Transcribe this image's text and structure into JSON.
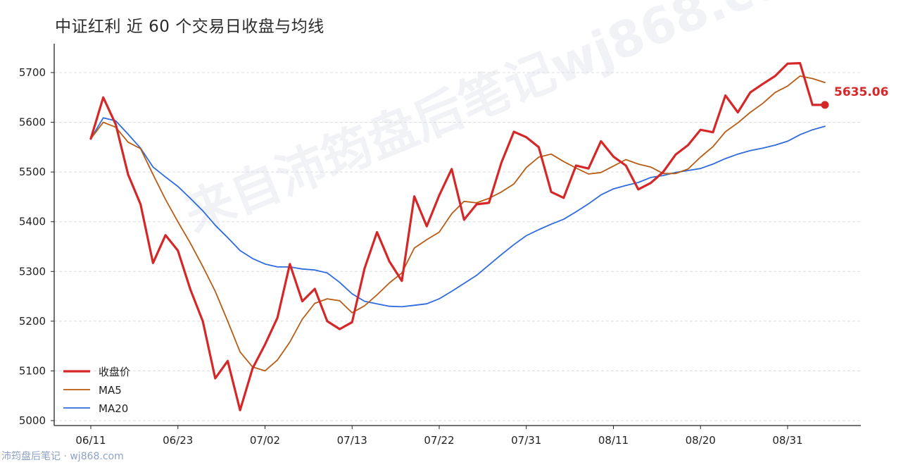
{
  "title": "中证红利 近 60 个交易日收盘与均线",
  "watermark": "来自沛筠盘后笔记wj868.com",
  "footer": "沛筠盘后笔记 · wj868.com",
  "colors": {
    "close": "#d62728",
    "ma5": "#b85c13",
    "ma20": "#2f6be0",
    "grid": "#dcdcdc",
    "axis": "#222222"
  },
  "chart_data": {
    "type": "line",
    "ylim": [
      4990,
      5760
    ],
    "y_ticks": [
      5000,
      5100,
      5200,
      5300,
      5400,
      5500,
      5600,
      5700
    ],
    "x_tick_labels": [
      {
        "index": 0,
        "label": "06/11"
      },
      {
        "index": 7,
        "label": "06/23"
      },
      {
        "index": 14,
        "label": "07/02"
      },
      {
        "index": 21,
        "label": "07/13"
      },
      {
        "index": 28,
        "label": "07/22"
      },
      {
        "index": 35,
        "label": "07/31"
      },
      {
        "index": 42,
        "label": "08/11"
      },
      {
        "index": 49,
        "label": "08/20"
      },
      {
        "index": 56,
        "label": "08/31"
      }
    ],
    "series": [
      {
        "name": "收盘价",
        "values": [
          5567,
          5650,
          5596,
          5495,
          5435,
          5317,
          5373,
          5342,
          5264,
          5200,
          5085,
          5120,
          5021,
          5105,
          5153,
          5207,
          5315,
          5240,
          5265,
          5200,
          5184,
          5198,
          5306,
          5379,
          5320,
          5281,
          5451,
          5391,
          5453,
          5506,
          5404,
          5435,
          5438,
          5519,
          5581,
          5570,
          5550,
          5460,
          5448,
          5513,
          5507,
          5562,
          5531,
          5513,
          5465,
          5478,
          5500,
          5535,
          5554,
          5585,
          5580,
          5654,
          5620,
          5660,
          5677,
          5693,
          5718,
          5719,
          5635,
          5635
        ]
      },
      {
        "name": "MA5",
        "values": [
          5567,
          5600,
          5590,
          5560,
          5547,
          5495,
          5445,
          5400,
          5357,
          5310,
          5260,
          5200,
          5138,
          5108,
          5100,
          5122,
          5158,
          5204,
          5236,
          5245,
          5241,
          5217,
          5231,
          5253,
          5277,
          5297,
          5347,
          5364,
          5379,
          5416,
          5441,
          5438,
          5447,
          5460,
          5476,
          5509,
          5530,
          5536,
          5521,
          5508,
          5496,
          5499,
          5512,
          5525,
          5516,
          5510,
          5497,
          5497,
          5506,
          5530,
          5551,
          5581,
          5599,
          5620,
          5638,
          5660,
          5673,
          5693,
          5688,
          5680
        ]
      },
      {
        "name": "MA20",
        "values": [
          5567,
          5609,
          5603,
          5576,
          5548,
          5510,
          5490,
          5471,
          5447,
          5422,
          5393,
          5368,
          5342,
          5326,
          5315,
          5309,
          5309,
          5305,
          5303,
          5297,
          5278,
          5255,
          5240,
          5235,
          5230,
          5229,
          5232,
          5235,
          5245,
          5260,
          5276,
          5292,
          5313,
          5334,
          5354,
          5372,
          5384,
          5395,
          5405,
          5420,
          5436,
          5454,
          5466,
          5473,
          5479,
          5489,
          5493,
          5499,
          5503,
          5507,
          5516,
          5527,
          5536,
          5543,
          5548,
          5554,
          5562,
          5575,
          5585,
          5592
        ]
      }
    ],
    "last_value_label": "5635.06",
    "legend": {
      "position": "bottom-left",
      "entries": [
        "收盘价",
        "MA5",
        "MA20"
      ]
    },
    "grid": "horizontal dashed"
  }
}
